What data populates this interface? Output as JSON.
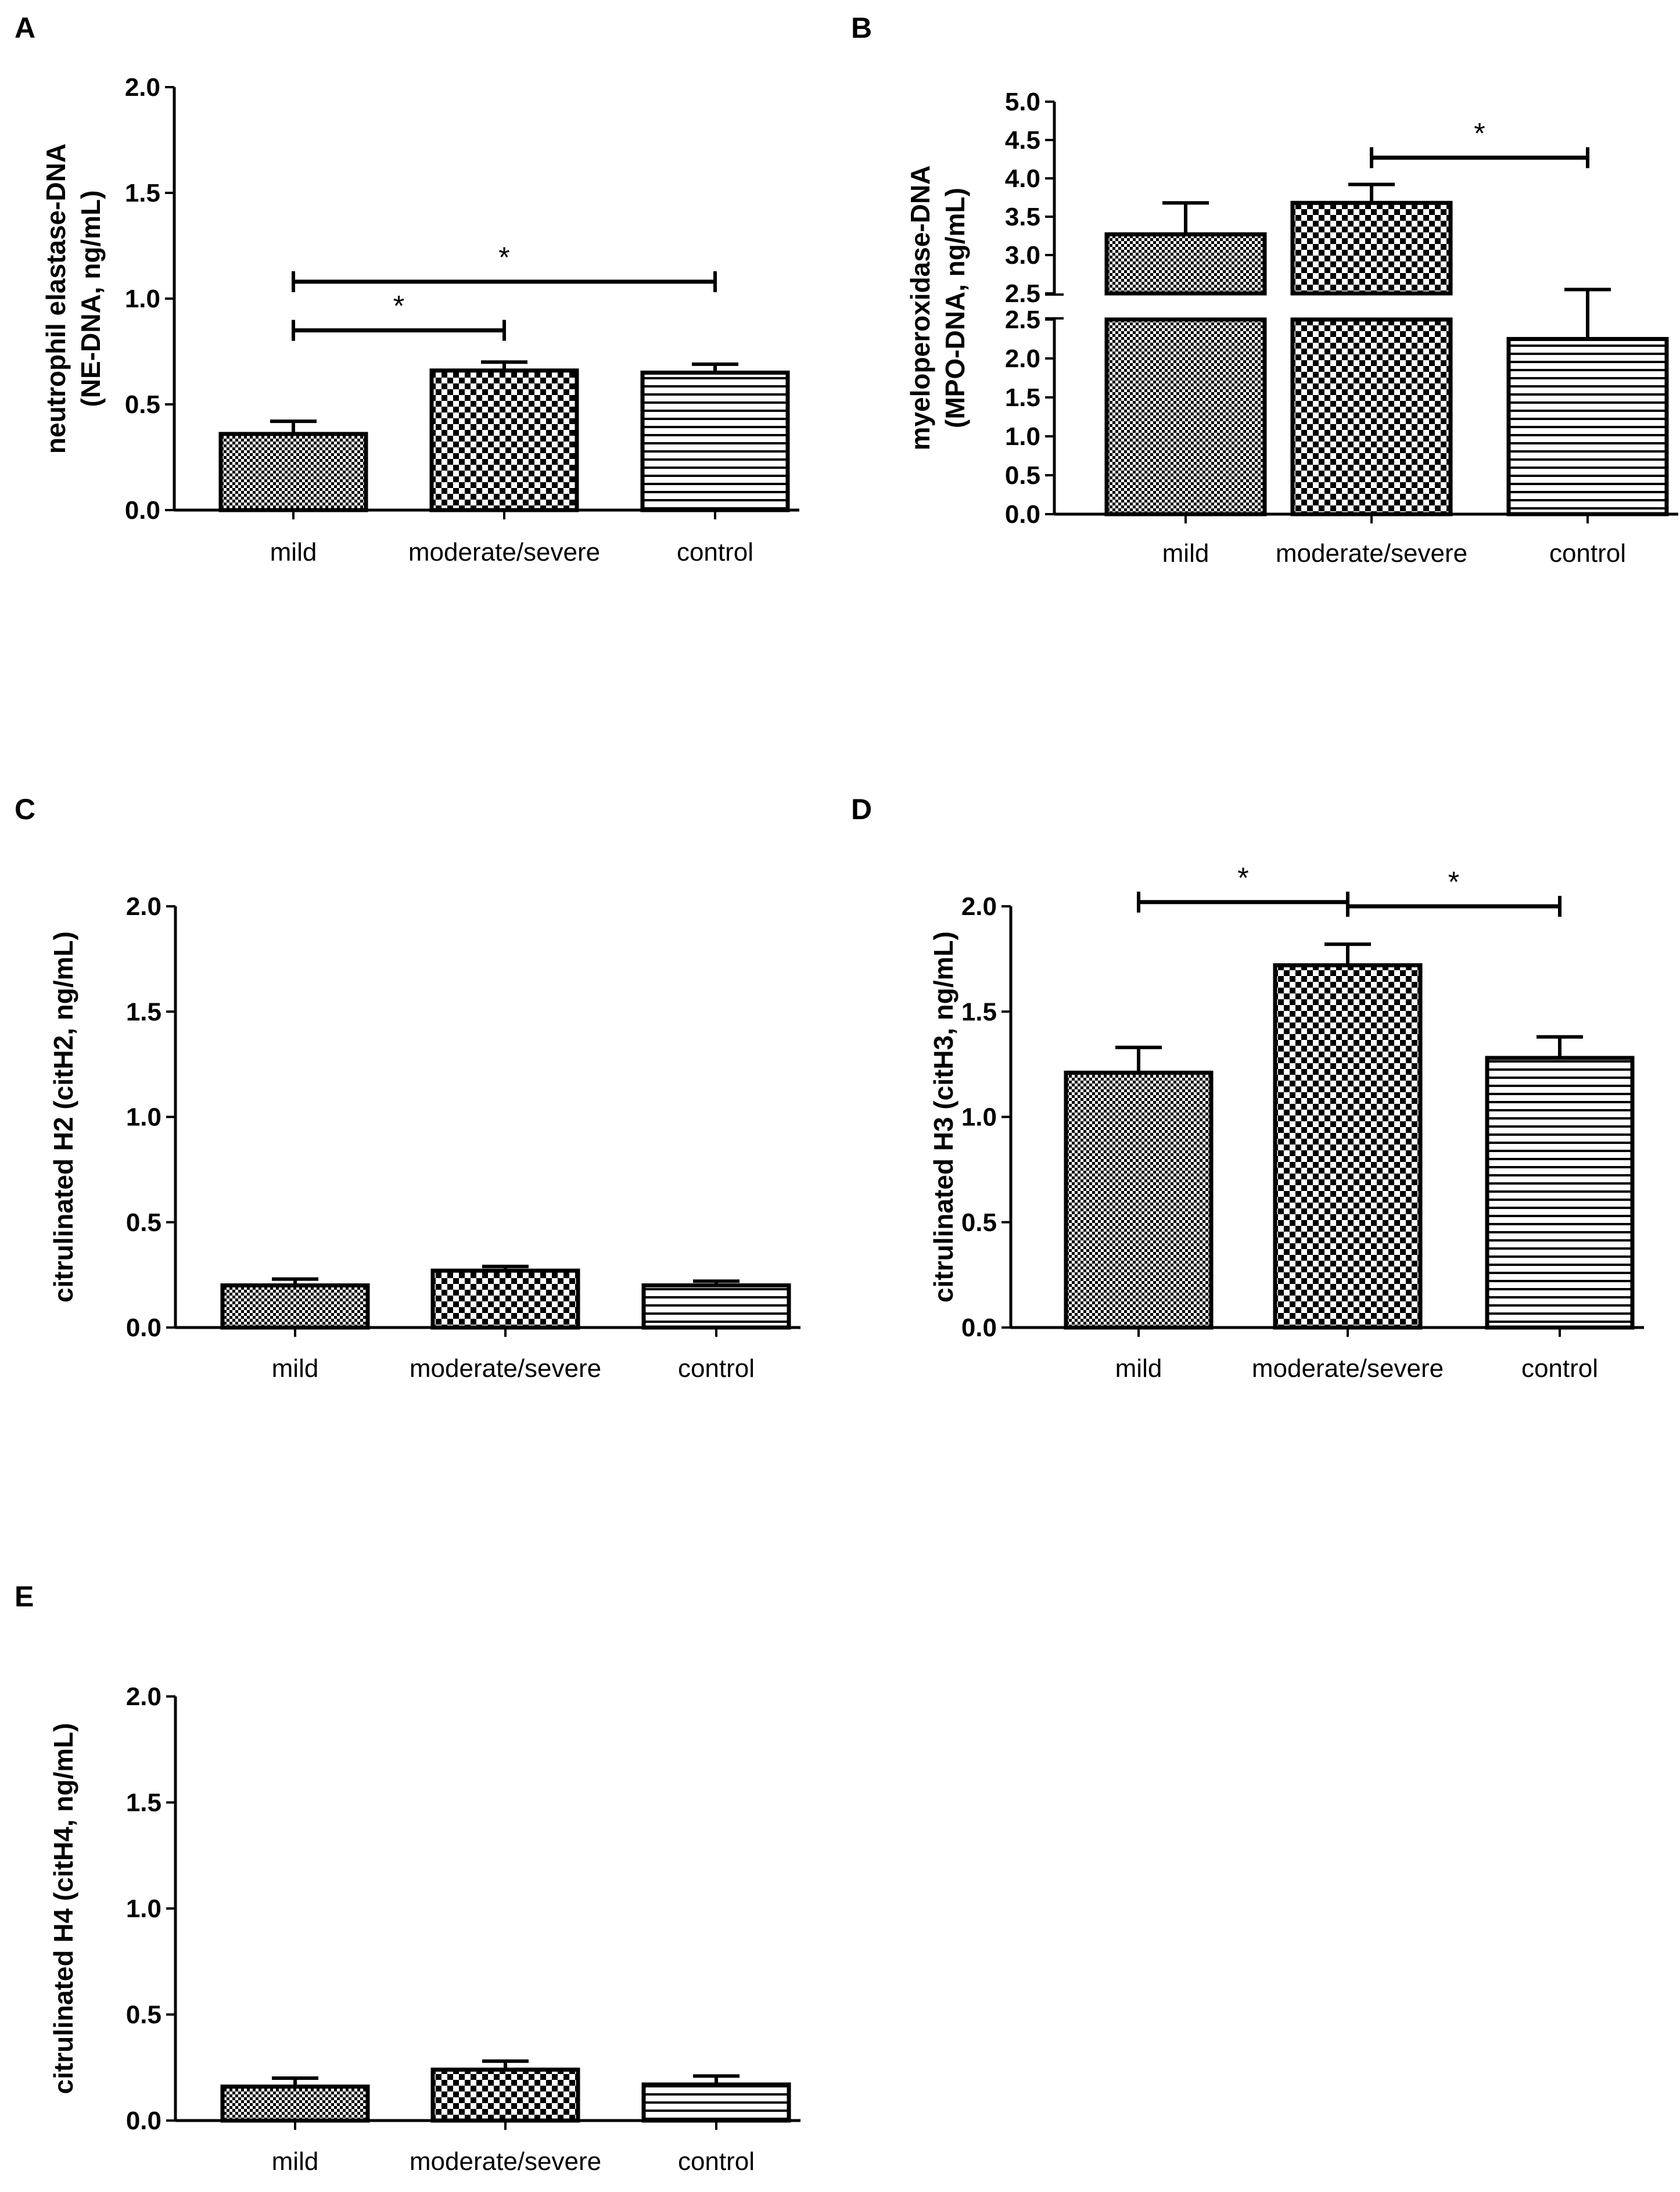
{
  "chart_data": [
    {
      "panel": "A",
      "type": "bar",
      "ylabel_lines": [
        "neutrophil elastase-DNA",
        "(NE-DNA, ng/mL)"
      ],
      "categories": [
        "mild",
        "moderate/severe",
        "control"
      ],
      "values": [
        0.36,
        0.66,
        0.65
      ],
      "errors": [
        0.06,
        0.04,
        0.04
      ],
      "yticks": [
        "0.0",
        "0.5",
        "1.0",
        "1.5",
        "2.0"
      ],
      "ylim": [
        0,
        2.0
      ],
      "patterns": [
        "fine-check",
        "coarse-check",
        "horizontal-lines"
      ],
      "significance": [
        {
          "from": 0,
          "to": 1,
          "y": 0.85,
          "label": "*"
        },
        {
          "from": 0,
          "to": 2,
          "y": 1.08,
          "label": "*"
        }
      ]
    },
    {
      "panel": "B",
      "type": "bar",
      "ylabel_lines": [
        "myeloperoxidase-DNA",
        "(MPO-DNA, ng/mL)"
      ],
      "categories": [
        "mild",
        "moderate/severe",
        "control"
      ],
      "values": [
        3.27,
        3.68,
        2.25
      ],
      "errors": [
        0.41,
        0.24,
        0.3
      ],
      "yticks_lower": [
        "0.0",
        "0.5",
        "1.0",
        "1.5",
        "2.0",
        "2.5"
      ],
      "yticks_upper": [
        "2.5",
        "3.0",
        "3.5",
        "4.0",
        "4.5",
        "5.0"
      ],
      "axis_break": true,
      "patterns": [
        "fine-check",
        "coarse-check",
        "horizontal-lines"
      ],
      "significance": [
        {
          "from": 1,
          "to": 2,
          "y": 4.27,
          "label": "*"
        }
      ]
    },
    {
      "panel": "C",
      "type": "bar",
      "ylabel_lines": [
        "citrulinated  H2 (citH2, ng/mL)"
      ],
      "categories": [
        "mild",
        "moderate/severe",
        "control"
      ],
      "values": [
        0.2,
        0.27,
        0.2
      ],
      "errors": [
        0.03,
        0.02,
        0.02
      ],
      "yticks": [
        "0.0",
        "0.5",
        "1.0",
        "1.5",
        "2.0"
      ],
      "ylim": [
        0,
        2.0
      ],
      "patterns": [
        "fine-check",
        "coarse-check",
        "horizontal-lines"
      ],
      "significance": []
    },
    {
      "panel": "D",
      "type": "bar",
      "ylabel_lines": [
        "citrulinated  H3 (citH3, ng/mL)"
      ],
      "categories": [
        "mild",
        "moderate/severe",
        "control"
      ],
      "values": [
        1.21,
        1.72,
        1.28
      ],
      "errors": [
        0.12,
        0.1,
        0.1
      ],
      "yticks": [
        "0.0",
        "0.5",
        "1.0",
        "1.5",
        "2.0"
      ],
      "ylim": [
        0,
        2.0
      ],
      "patterns": [
        "fine-check",
        "coarse-check",
        "horizontal-lines"
      ],
      "significance": [
        {
          "from": 0,
          "to": 1,
          "y": 2.02,
          "label": "*"
        },
        {
          "from": 1,
          "to": 2,
          "y": 2.0,
          "label": "*"
        }
      ]
    },
    {
      "panel": "E",
      "type": "bar",
      "ylabel_lines": [
        "citrulinated  H4 (citH4, ng/mL)"
      ],
      "categories": [
        "mild",
        "moderate/severe",
        "control"
      ],
      "values": [
        0.16,
        0.24,
        0.17
      ],
      "errors": [
        0.04,
        0.04,
        0.04
      ],
      "yticks": [
        "0.0",
        "0.5",
        "1.0",
        "1.5",
        "2.0"
      ],
      "ylim": [
        0,
        2.0
      ],
      "patterns": [
        "fine-check",
        "coarse-check",
        "horizontal-lines"
      ],
      "significance": []
    }
  ]
}
